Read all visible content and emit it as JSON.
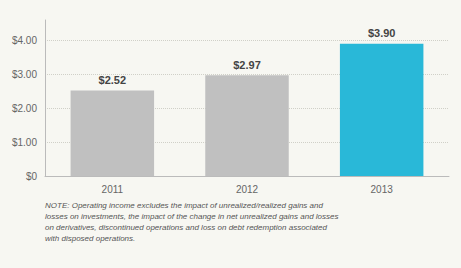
{
  "chart_data": {
    "type": "bar",
    "categories": [
      "2011",
      "2012",
      "2013"
    ],
    "values": [
      2.52,
      2.97,
      3.9
    ],
    "value_labels": [
      "$2.52",
      "$2.97",
      "$3.90"
    ],
    "data_labels": true,
    "colors": [
      "#c0c0c0",
      "#c0c0c0",
      "#29b8d8"
    ],
    "ylim": [
      0,
      4.6
    ],
    "yticks": [
      {
        "value": 0,
        "label": "$0"
      },
      {
        "value": 1.0,
        "label": "$1.00"
      },
      {
        "value": 2.0,
        "label": "$2.00"
      },
      {
        "value": 3.0,
        "label": "$3.00"
      },
      {
        "value": 4.0,
        "label": "$4.00"
      }
    ],
    "grid": true,
    "annotations": [
      "NOTE: Operating income excludes the impact of unrealized/realized gains and\nlosses on investments, the impact of the change in net unrealized gains and losses\non derivatives, discontinued operations and loss on debt redemption associated\nwith disposed operations."
    ]
  }
}
